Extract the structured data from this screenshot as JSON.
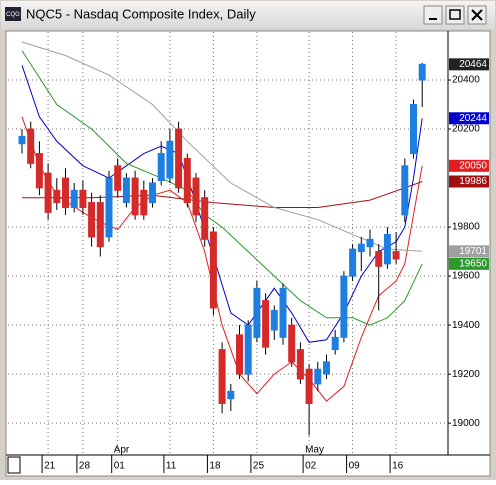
{
  "window": {
    "icon": "CQG",
    "title": "NQC5 - Nasdaq Composite Index, Daily"
  },
  "chart_data": {
    "type": "candlestick",
    "categories": [
      null,
      null,
      null,
      "21",
      null,
      null,
      null,
      "28",
      null,
      null,
      null,
      "01",
      null,
      null,
      null,
      null,
      null,
      "11",
      null,
      null,
      null,
      null,
      "18",
      null,
      null,
      null,
      null,
      "25",
      null,
      null,
      null,
      null,
      null,
      "02",
      null,
      null,
      null,
      null,
      "09",
      null,
      null,
      null,
      null,
      "16",
      null,
      null,
      null
    ],
    "months": [
      {
        "index": 11,
        "label": "Apr"
      },
      {
        "index": 33,
        "label": "May"
      }
    ],
    "open": [
      20140,
      20200,
      20100,
      20020,
      19950,
      20000,
      19880,
      19950,
      19900,
      19900,
      19760,
      20050,
      19900,
      20000,
      19950,
      19900,
      19990,
      20000,
      20200,
      20080,
      20000,
      19920,
      19780,
      19300,
      19100,
      19360,
      19200,
      19350,
      19500,
      19380,
      19350,
      19400,
      19300,
      19220,
      19160,
      19200,
      19300,
      19350,
      19600,
      19700,
      19720,
      19700,
      19650,
      19700,
      19850,
      20100,
      20400
    ],
    "high": [
      20200,
      20230,
      20150,
      20060,
      20000,
      20040,
      19980,
      19990,
      19940,
      19930,
      20030,
      20080,
      20020,
      20030,
      19990,
      20000,
      20150,
      20200,
      20230,
      20100,
      20020,
      19950,
      19800,
      19330,
      19160,
      19400,
      19420,
      19580,
      19530,
      19480,
      19570,
      19430,
      19330,
      19240,
      19250,
      19280,
      19380,
      19620,
      19730,
      19760,
      19790,
      19730,
      19800,
      19780,
      20080,
      20320,
      20470
    ],
    "low": [
      20100,
      20040,
      19930,
      19830,
      19870,
      19850,
      19860,
      19850,
      19720,
      19680,
      19740,
      19920,
      19880,
      19830,
      19830,
      19880,
      19970,
      19980,
      19940,
      19880,
      19820,
      19720,
      19440,
      19040,
      19050,
      19180,
      19170,
      19330,
      19280,
      19340,
      19320,
      19230,
      19160,
      18950,
      19130,
      19180,
      19280,
      19330,
      19580,
      19620,
      19680,
      19460,
      19630,
      19650,
      19820,
      20080,
      20290
    ],
    "close": [
      20170,
      20060,
      19960,
      19860,
      19900,
      19880,
      19950,
      19880,
      19760,
      19720,
      20000,
      19950,
      20000,
      19850,
      19850,
      19980,
      20100,
      20150,
      19960,
      19900,
      19850,
      19750,
      19470,
      19080,
      19130,
      19200,
      19400,
      19550,
      19310,
      19460,
      19550,
      19250,
      19180,
      19080,
      19220,
      19250,
      19350,
      19600,
      19710,
      19730,
      19750,
      19640,
      19770,
      19670,
      20050,
      20300,
      20464
    ],
    "up_color": "#1e7fe0",
    "down_color": "#d42a2a",
    "last_price": 20464,
    "series": [
      {
        "color": "#0000cc",
        "end_label": 20244,
        "x": [
          0,
          2,
          4,
          7,
          10,
          12,
          14,
          16,
          18,
          20,
          22,
          24,
          26,
          28,
          29,
          31,
          33,
          35,
          37,
          39,
          41,
          43,
          44,
          45,
          46
        ],
        "values": [
          20460,
          20250,
          20150,
          20050,
          20000,
          20050,
          20100,
          20130,
          20100,
          19900,
          19680,
          19450,
          19400,
          19500,
          19550,
          19450,
          19330,
          19340,
          19450,
          19600,
          19700,
          19740,
          19800,
          20000,
          20244
        ]
      },
      {
        "color": "#e02020",
        "end_label": 20050,
        "x": [
          0,
          2,
          4,
          7,
          9,
          11,
          13,
          15,
          17,
          19,
          21,
          23,
          25,
          27,
          29,
          31,
          33,
          35,
          37,
          39,
          41,
          43,
          44,
          45,
          46
        ],
        "values": [
          20250,
          20050,
          19930,
          19860,
          19820,
          19790,
          19880,
          19930,
          19950,
          19900,
          19700,
          19400,
          19200,
          19120,
          19200,
          19250,
          19180,
          19090,
          19150,
          19350,
          19520,
          19580,
          19650,
          19850,
          20050
        ]
      },
      {
        "color": "#a01010",
        "end_label": 19986,
        "x": [
          0,
          8,
          15,
          22,
          29,
          34,
          40,
          44,
          46
        ],
        "values": [
          19920,
          19920,
          19930,
          19900,
          19880,
          19880,
          19910,
          19960,
          19986
        ]
      },
      {
        "color": "#a0a0a0",
        "end_label": 19701,
        "x": [
          0,
          5,
          10,
          15,
          19,
          24,
          29,
          34,
          38,
          42,
          46
        ],
        "values": [
          20555,
          20500,
          20420,
          20300,
          20150,
          19980,
          19880,
          19830,
          19770,
          19710,
          19701
        ]
      },
      {
        "color": "#2a9a2a",
        "end_label": 19650,
        "x": [
          0,
          4,
          8,
          12,
          16,
          19,
          21,
          23,
          26,
          29,
          32,
          35,
          38,
          40,
          42,
          44,
          46
        ],
        "values": [
          20520,
          20300,
          20200,
          20060,
          20000,
          19950,
          19850,
          19800,
          19700,
          19600,
          19500,
          19430,
          19430,
          19400,
          19430,
          19500,
          19650
        ]
      }
    ],
    "ylim": [
      18870,
      20596
    ],
    "yticks": [
      19000,
      19200,
      19400,
      19600,
      19800,
      20200,
      20400
    ],
    "grid": true
  }
}
